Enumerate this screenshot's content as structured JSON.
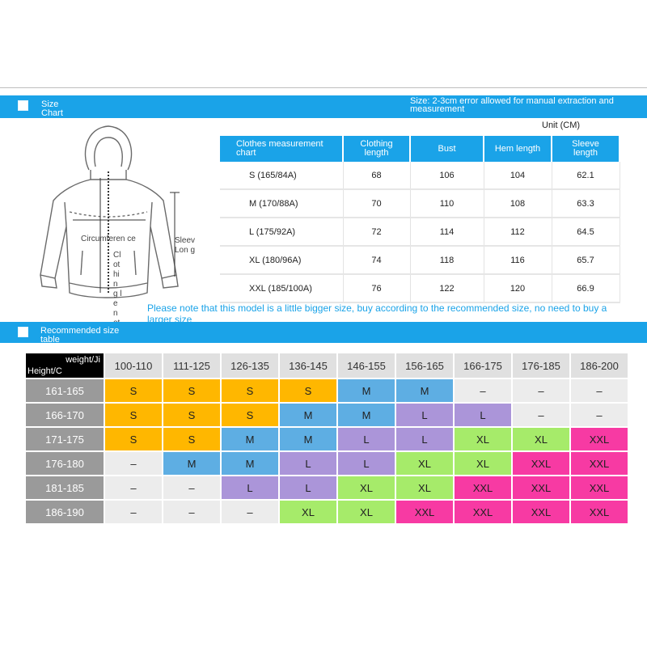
{
  "header": {
    "size_chart_title": "Size Chart",
    "error_note": "Size: 2-3cm error allowed for manual extraction and measurement",
    "unit": "Unit (CM)"
  },
  "diagram": {
    "labels": {
      "circumference": "Circumferen ce",
      "sleeve": "Sleev Lon g",
      "clothing_length": "Cl ot hin g le n ot"
    }
  },
  "measurement_table": {
    "headers": [
      "Clothes measurement chart",
      "Clothing length",
      "Bust",
      "Hem length",
      "Sleeve length"
    ],
    "rows": [
      [
        "S (165/84A)",
        "68",
        "106",
        "104",
        "62.1"
      ],
      [
        "M (170/88A)",
        "70",
        "110",
        "108",
        "63.3"
      ],
      [
        "L (175/92A)",
        "72",
        "114",
        "112",
        "64.5"
      ],
      [
        "XL (180/96A)",
        "74",
        "118",
        "116",
        "65.7"
      ],
      [
        "XXL (185/100A)",
        "76",
        "122",
        "120",
        "66.9"
      ]
    ]
  },
  "model_note": "Please note that this model is a little bigger size, buy according to the recommended size, no need to buy a larger size",
  "recommended": {
    "title": "Recommended size table",
    "corner_weight": "weight/Ji",
    "corner_height": "Height/C",
    "weight_headers": [
      "100-110",
      "111-125",
      "126-135",
      "136-145",
      "146-155",
      "156-165",
      "166-175",
      "176-185",
      "186-200"
    ],
    "rows": [
      {
        "height": "161-165",
        "sizes": [
          "S",
          "S",
          "S",
          "S",
          "M",
          "M",
          "–",
          "–",
          "–"
        ]
      },
      {
        "height": "166-170",
        "sizes": [
          "S",
          "S",
          "S",
          "M",
          "M",
          "L",
          "L",
          "–",
          "–"
        ]
      },
      {
        "height": "171-175",
        "sizes": [
          "S",
          "S",
          "M",
          "M",
          "L",
          "L",
          "XL",
          "XL",
          "XXL"
        ]
      },
      {
        "height": "176-180",
        "sizes": [
          "–",
          "M",
          "M",
          "L",
          "L",
          "XL",
          "XL",
          "XXL",
          "XXL"
        ]
      },
      {
        "height": "181-185",
        "sizes": [
          "–",
          "–",
          "L",
          "L",
          "XL",
          "XL",
          "XXL",
          "XXL",
          "XXL"
        ]
      },
      {
        "height": "186-190",
        "sizes": [
          "–",
          "–",
          "–",
          "XL",
          "XL",
          "XXL",
          "XXL",
          "XXL",
          "XXL"
        ]
      }
    ],
    "colors": {
      "S": "#ffb700",
      "M": "#5eaee3",
      "L": "#ab95d9",
      "XL": "#a6eb6a",
      "XXL": "#f73aa3",
      "none": "#ececec"
    }
  },
  "colors": {
    "accent_blue": "#1aa3e8",
    "header_gray": "#9a9a9a"
  }
}
